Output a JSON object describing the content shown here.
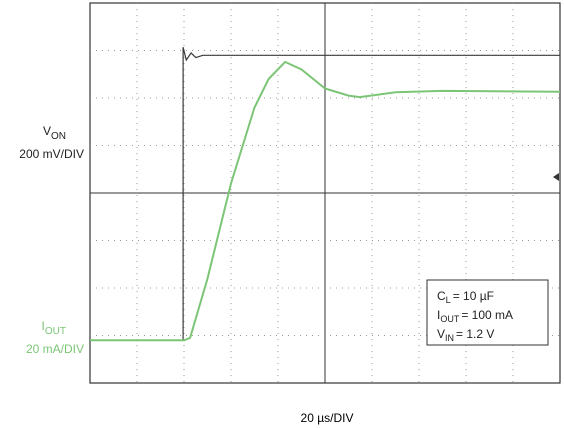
{
  "chart_data": {
    "type": "line",
    "xlabel": "20 µs/DIV",
    "xlim": [
      0,
      10
    ],
    "ylim": [
      0,
      8
    ],
    "series": [
      {
        "name": "V",
        "name_sub": "ON",
        "scale": "200 mV/DIV",
        "color": "#3a3a3a",
        "x": [
          0,
          1.98,
          1.98,
          2.05,
          2.15,
          2.25,
          2.4,
          10
        ],
        "values": [
          0.9,
          0.9,
          7.07,
          6.8,
          6.95,
          6.85,
          6.9,
          6.9
        ]
      },
      {
        "name": "I",
        "name_sub": "OUT",
        "scale": "20 mA/DIV",
        "color": "#7cc576",
        "x": [
          0,
          2.0,
          2.13,
          2.5,
          3.0,
          3.5,
          3.8,
          4.15,
          4.5,
          5.0,
          5.5,
          5.74,
          6.5,
          7.5,
          10
        ],
        "values": [
          0.9,
          0.9,
          0.95,
          2.2,
          4.2,
          5.8,
          6.4,
          6.76,
          6.6,
          6.2,
          6.05,
          6.02,
          6.12,
          6.15,
          6.13
        ]
      }
    ],
    "annotations": [
      {
        "main": "C",
        "sub": "L",
        "rest": "= 10 µF"
      },
      {
        "main": "I",
        "sub": "OUT",
        "rest": "= 100 mA"
      },
      {
        "main": "V",
        "sub": "IN",
        "rest": "= 1.2 V"
      }
    ]
  }
}
